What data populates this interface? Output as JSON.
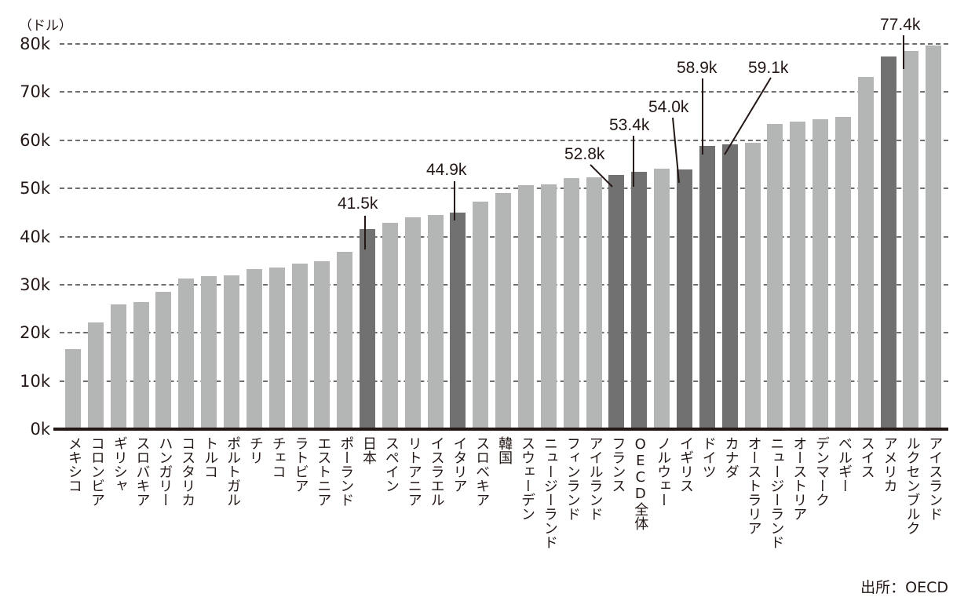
{
  "chart_data": {
    "type": "bar",
    "title": "",
    "xlabel": "",
    "ylabel": "（ドル）",
    "ylim": [
      0,
      80000
    ],
    "yticks": [
      "0k",
      "10k",
      "20k",
      "30k",
      "40k",
      "50k",
      "60k",
      "70k",
      "80k"
    ],
    "grid": true,
    "legend": null,
    "categories": [
      "メキシコ",
      "コロンビア",
      "ギリシャ",
      "スロバキア",
      "ハンガリー",
      "コスタリカ",
      "トルコ",
      "ポルトガル",
      "チリ",
      "チェコ",
      "ラトビア",
      "エストニア",
      "ポーランド",
      "日本",
      "スペイン",
      "リトアニア",
      "イスラエル",
      "イタリア",
      "スロベキア",
      "韓国",
      "スウェーデン",
      "ニュージーランド",
      "フィンランド",
      "アイルランド",
      "フランス",
      "OECD全体",
      "ノルウェー",
      "イギリス",
      "ドイツ",
      "カナダ",
      "オーストラリア",
      "ニュージーランド",
      "オーストリア",
      "デンマーク",
      "ベルギー",
      "スイス",
      "アメリカ",
      "ルクセンブルク",
      "アイスランド"
    ],
    "values": [
      16.6,
      22.1,
      25.9,
      26.4,
      28.5,
      31.3,
      31.8,
      31.9,
      33.3,
      33.6,
      34.4,
      34.9,
      36.8,
      41.5,
      42.8,
      44.0,
      44.5,
      44.9,
      47.2,
      49.0,
      50.6,
      50.8,
      52.1,
      52.3,
      52.8,
      53.4,
      54.1,
      54.0,
      58.9,
      59.1,
      59.4,
      63.4,
      63.9,
      64.4,
      64.9,
      73.1,
      77.4,
      78.6,
      79.7
    ],
    "value_unit": "k USD",
    "highlighted": [
      "日本",
      "イタリア",
      "フランス",
      "OECD全体",
      "イギリス",
      "ドイツ",
      "カナダ",
      "アメリカ"
    ],
    "annotations": [
      {
        "category": "日本",
        "label": "41.5k"
      },
      {
        "category": "イタリア",
        "label": "44.9k"
      },
      {
        "category": "フランス",
        "label": "52.8k"
      },
      {
        "category": "OECD全体",
        "label": "53.4k"
      },
      {
        "category": "イギリス",
        "label": "54.0k"
      },
      {
        "category": "ドイツ",
        "label": "58.9k"
      },
      {
        "category": "カナダ",
        "label": "59.1k"
      },
      {
        "category": "アメリカ",
        "label": "77.4k"
      }
    ],
    "source": "出所：OECD",
    "colors": {
      "normal": "#b4b5b5",
      "highlight": "#717171",
      "grid": "#6f6f6f",
      "axis": "#231815",
      "text": "#231815"
    }
  }
}
